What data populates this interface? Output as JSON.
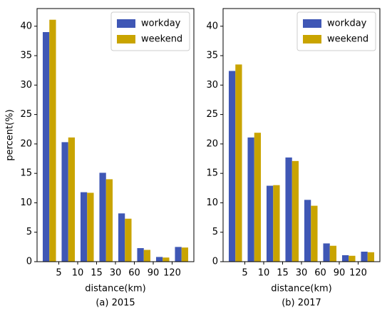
{
  "chart_data": [
    {
      "type": "bar",
      "caption": "(a) 2015",
      "xlabel": "distance(km)",
      "ylabel": "percent(%)",
      "categories": [
        null,
        null,
        null,
        null,
        null,
        null,
        null,
        null
      ],
      "xtick_labels": [
        "5",
        "10",
        "15",
        "30",
        "60",
        "90",
        "120"
      ],
      "series": [
        {
          "name": "workday",
          "color": "#3f57b5",
          "values": [
            39.0,
            20.3,
            11.8,
            15.1,
            8.2,
            2.3,
            0.8,
            2.5
          ]
        },
        {
          "name": "weekend",
          "color": "#c9a400",
          "values": [
            41.1,
            21.1,
            11.7,
            14.0,
            7.3,
            2.0,
            0.7,
            2.4
          ]
        }
      ],
      "ylim": [
        0,
        43
      ],
      "yticks": [
        0,
        5,
        10,
        15,
        20,
        25,
        30,
        35,
        40
      ],
      "legend": "upper right"
    },
    {
      "type": "bar",
      "caption": "(b) 2017",
      "xlabel": "distance(km)",
      "categories": [
        null,
        null,
        null,
        null,
        null,
        null,
        null,
        null
      ],
      "xtick_labels": [
        "5",
        "10",
        "15",
        "30",
        "60",
        "90",
        "120"
      ],
      "series": [
        {
          "name": "workday",
          "color": "#3f57b5",
          "values": [
            32.4,
            21.1,
            12.9,
            17.7,
            10.5,
            3.1,
            1.1,
            1.7
          ]
        },
        {
          "name": "weekend",
          "color": "#c9a400",
          "values": [
            33.5,
            21.9,
            13.0,
            17.1,
            9.5,
            2.7,
            1.0,
            1.6
          ]
        }
      ],
      "ylim": [
        0,
        43
      ],
      "yticks": [
        0,
        5,
        10,
        15,
        20,
        25,
        30,
        35,
        40
      ],
      "legend": "upper right"
    }
  ]
}
